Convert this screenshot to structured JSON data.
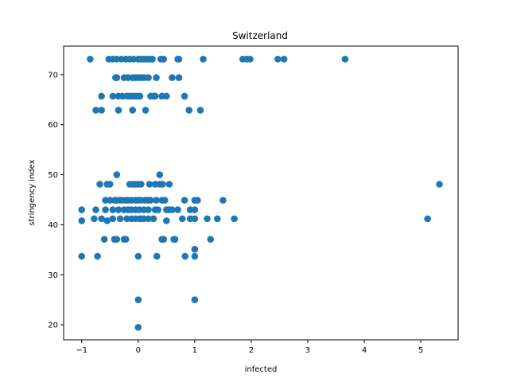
{
  "chart_data": {
    "type": "scatter",
    "title": "Switzerland",
    "xlabel": "infected",
    "ylabel": "stringency index",
    "xlim": [
      -1.32,
      5.66
    ],
    "ylim": [
      17.0,
      75.7
    ],
    "xticks": [
      -1,
      0,
      1,
      2,
      3,
      4,
      5
    ],
    "yticks": [
      20,
      30,
      40,
      50,
      60,
      70
    ],
    "xtick_labels": [
      "−1",
      "0",
      "1",
      "2",
      "3",
      "4",
      "5"
    ],
    "ytick_labels": [
      "20",
      "30",
      "40",
      "50",
      "60",
      "70"
    ],
    "grid": false,
    "color": "#1f77b4",
    "points": [
      [
        -0.85,
        73.1
      ],
      [
        -0.52,
        73.1
      ],
      [
        -0.45,
        73.1
      ],
      [
        -0.38,
        73.1
      ],
      [
        -0.3,
        73.1
      ],
      [
        -0.22,
        73.1
      ],
      [
        -0.15,
        73.1
      ],
      [
        -0.08,
        73.1
      ],
      [
        0.0,
        73.1
      ],
      [
        0.05,
        73.1
      ],
      [
        0.1,
        73.1
      ],
      [
        0.15,
        73.1
      ],
      [
        0.2,
        73.1
      ],
      [
        0.25,
        73.1
      ],
      [
        0.4,
        73.1
      ],
      [
        0.45,
        73.1
      ],
      [
        0.7,
        73.1
      ],
      [
        0.72,
        73.1
      ],
      [
        1.15,
        73.1
      ],
      [
        1.85,
        73.1
      ],
      [
        1.92,
        73.1
      ],
      [
        1.98,
        73.1
      ],
      [
        2.47,
        73.1
      ],
      [
        2.58,
        73.1
      ],
      [
        3.66,
        73.1
      ],
      [
        -0.4,
        69.4
      ],
      [
        -0.38,
        69.4
      ],
      [
        -0.25,
        69.4
      ],
      [
        -0.18,
        69.4
      ],
      [
        -0.1,
        69.4
      ],
      [
        -0.05,
        69.4
      ],
      [
        0.0,
        69.4
      ],
      [
        0.05,
        69.4
      ],
      [
        0.1,
        69.4
      ],
      [
        0.18,
        69.4
      ],
      [
        0.32,
        69.4
      ],
      [
        0.6,
        69.4
      ],
      [
        0.72,
        69.4
      ],
      [
        -0.65,
        65.7
      ],
      [
        -0.45,
        65.7
      ],
      [
        -0.35,
        65.7
      ],
      [
        -0.28,
        65.7
      ],
      [
        -0.2,
        65.7
      ],
      [
        -0.15,
        65.7
      ],
      [
        -0.1,
        65.7
      ],
      [
        -0.05,
        65.7
      ],
      [
        0.0,
        65.7
      ],
      [
        0.03,
        65.7
      ],
      [
        0.22,
        65.7
      ],
      [
        0.27,
        65.7
      ],
      [
        0.3,
        65.7
      ],
      [
        0.42,
        65.7
      ],
      [
        0.5,
        65.7
      ],
      [
        0.82,
        65.7
      ],
      [
        -0.75,
        62.9
      ],
      [
        -0.65,
        62.9
      ],
      [
        -0.35,
        62.9
      ],
      [
        -0.1,
        62.9
      ],
      [
        0.13,
        62.9
      ],
      [
        0.9,
        62.9
      ],
      [
        1.1,
        62.9
      ],
      [
        -0.38,
        50.0
      ],
      [
        0.38,
        50.0
      ],
      [
        -0.68,
        48.1
      ],
      [
        -0.55,
        48.1
      ],
      [
        -0.5,
        48.1
      ],
      [
        -0.15,
        48.1
      ],
      [
        -0.1,
        48.1
      ],
      [
        -0.05,
        48.1
      ],
      [
        0.0,
        48.1
      ],
      [
        0.05,
        48.1
      ],
      [
        0.2,
        48.1
      ],
      [
        0.3,
        48.1
      ],
      [
        0.38,
        48.1
      ],
      [
        0.43,
        48.1
      ],
      [
        0.55,
        48.1
      ],
      [
        5.33,
        48.1
      ],
      [
        -0.58,
        44.9
      ],
      [
        -0.5,
        44.9
      ],
      [
        -0.42,
        44.9
      ],
      [
        -0.38,
        44.9
      ],
      [
        -0.32,
        44.9
      ],
      [
        -0.28,
        44.9
      ],
      [
        -0.22,
        44.9
      ],
      [
        -0.18,
        44.9
      ],
      [
        -0.12,
        44.9
      ],
      [
        -0.05,
        44.9
      ],
      [
        0.0,
        44.9
      ],
      [
        0.05,
        44.9
      ],
      [
        0.12,
        44.9
      ],
      [
        0.17,
        44.9
      ],
      [
        0.22,
        44.9
      ],
      [
        0.32,
        44.9
      ],
      [
        0.42,
        44.9
      ],
      [
        0.47,
        44.9
      ],
      [
        0.82,
        44.9
      ],
      [
        1.0,
        44.9
      ],
      [
        1.05,
        44.9
      ],
      [
        1.5,
        44.9
      ],
      [
        -1.0,
        43.0
      ],
      [
        -0.75,
        43.0
      ],
      [
        -0.58,
        43.0
      ],
      [
        -0.45,
        43.0
      ],
      [
        -0.35,
        43.0
      ],
      [
        -0.25,
        43.0
      ],
      [
        -0.18,
        43.0
      ],
      [
        -0.12,
        43.0
      ],
      [
        -0.05,
        43.0
      ],
      [
        0.02,
        43.0
      ],
      [
        0.1,
        43.0
      ],
      [
        0.18,
        43.0
      ],
      [
        0.3,
        43.0
      ],
      [
        0.35,
        43.0
      ],
      [
        0.5,
        43.0
      ],
      [
        0.55,
        43.0
      ],
      [
        0.6,
        43.0
      ],
      [
        0.7,
        43.0
      ],
      [
        0.92,
        43.0
      ],
      [
        1.0,
        43.0
      ],
      [
        -1.0,
        40.8
      ],
      [
        -0.78,
        41.2
      ],
      [
        -0.65,
        41.2
      ],
      [
        -0.55,
        40.8
      ],
      [
        -0.45,
        41.2
      ],
      [
        -0.32,
        41.2
      ],
      [
        -0.2,
        41.2
      ],
      [
        -0.12,
        41.2
      ],
      [
        -0.05,
        41.2
      ],
      [
        0.02,
        41.2
      ],
      [
        0.05,
        41.2
      ],
      [
        0.1,
        41.2
      ],
      [
        0.18,
        41.2
      ],
      [
        0.27,
        41.2
      ],
      [
        0.5,
        40.8
      ],
      [
        0.78,
        41.2
      ],
      [
        0.92,
        41.2
      ],
      [
        1.0,
        41.2
      ],
      [
        1.22,
        41.2
      ],
      [
        1.4,
        41.2
      ],
      [
        1.7,
        41.2
      ],
      [
        5.12,
        41.2
      ],
      [
        -0.6,
        37.1
      ],
      [
        -0.42,
        37.1
      ],
      [
        -0.38,
        37.1
      ],
      [
        -0.25,
        37.1
      ],
      [
        -0.22,
        37.1
      ],
      [
        0.42,
        37.1
      ],
      [
        0.45,
        37.1
      ],
      [
        0.63,
        37.1
      ],
      [
        0.65,
        37.1
      ],
      [
        1.28,
        37.1
      ],
      [
        1.0,
        35.1
      ],
      [
        -1.0,
        33.7
      ],
      [
        -0.72,
        33.7
      ],
      [
        0.0,
        33.7
      ],
      [
        0.33,
        33.7
      ],
      [
        0.83,
        33.7
      ],
      [
        1.0,
        33.7
      ],
      [
        0.0,
        25.0
      ],
      [
        1.0,
        25.0
      ],
      [
        0.0,
        19.5
      ]
    ]
  }
}
